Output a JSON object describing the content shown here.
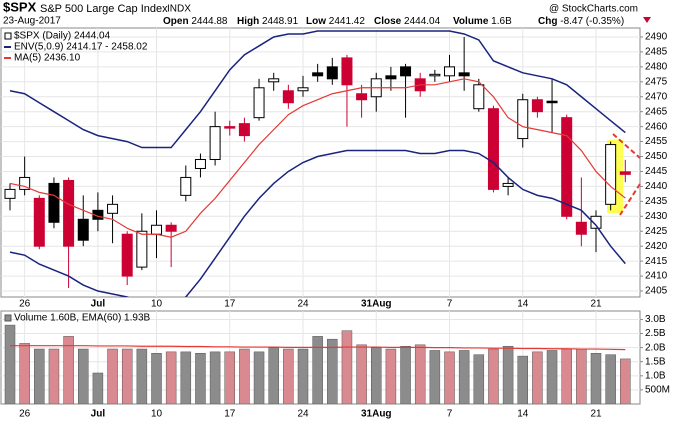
{
  "header": {
    "symbol": "$SPX",
    "name": "S&P 500 Large Cap Index",
    "exchange": "INDX",
    "date": "23-Aug-2017",
    "source": "@ StockCharts.com",
    "quote": [
      {
        "label": "Open",
        "value": 2444.88
      },
      {
        "label": "High",
        "value": 2448.91
      },
      {
        "label": "Low",
        "value": 2441.42
      },
      {
        "label": "Close",
        "value": 2444.04
      },
      {
        "label": "Volume",
        "value": "1.6B"
      },
      {
        "label": "Chg",
        "value": "-8.47 (-0.35%)"
      }
    ]
  },
  "chart_data": [
    {
      "type": "candlestick",
      "categories": [
        null,
        "26",
        null,
        null,
        null,
        null,
        "Jul",
        null,
        null,
        null,
        "10",
        null,
        null,
        null,
        null,
        "17",
        null,
        null,
        null,
        null,
        "24",
        null,
        null,
        null,
        null,
        "31Aug",
        null,
        null,
        null,
        null,
        "7",
        null,
        null,
        null,
        null,
        "14",
        null,
        null,
        null,
        null,
        "21",
        null,
        null
      ],
      "series": [
        {
          "name": "$SPX (Daily) 2444.04",
          "open": [
            2436,
            2439,
            2436,
            2441,
            2442,
            2429,
            2432,
            2431,
            2424,
            2413,
            2424,
            2427,
            2437,
            2446,
            2449,
            2460,
            2461,
            2463,
            2475,
            2472,
            2472,
            2478,
            2480,
            2483,
            2471,
            2470,
            2477,
            2480,
            2476,
            2477,
            2477,
            2478,
            2466,
            2466,
            2440,
            2456,
            2469,
            2468.5,
            2463,
            2428,
            2426,
            2434,
            2444.88
          ],
          "high": [
            2441,
            2450,
            2437,
            2443,
            2443,
            2437,
            2438,
            2437,
            2425,
            2431,
            2432,
            2428,
            2447,
            2451,
            2465,
            2462,
            2463,
            2476,
            2478,
            2474,
            2477,
            2481,
            2483,
            2484,
            2474,
            2478,
            2480,
            2481,
            2478,
            2479,
            2484,
            2490,
            2476,
            2467,
            2443,
            2471,
            2470,
            2476,
            2464,
            2443,
            2432,
            2455,
            2448.91
          ],
          "low": [
            2432,
            2437,
            2419,
            2426,
            2406,
            2420,
            2425,
            2421,
            2407,
            2412,
            2416,
            2413,
            2435,
            2443,
            2447,
            2457,
            2455,
            2462,
            2472,
            2466,
            2470,
            2475,
            2474,
            2460,
            2463,
            2465,
            2472,
            2463,
            2470,
            2475,
            2475,
            2472,
            2465,
            2438,
            2437,
            2453,
            2463,
            2458,
            2429,
            2420,
            2418,
            2432,
            2441.42
          ],
          "close": [
            2439,
            2443,
            2420,
            2428,
            2420,
            2422,
            2429,
            2434,
            2410,
            2425,
            2427,
            2425,
            2443,
            2449,
            2460,
            2459.5,
            2457,
            2473,
            2476,
            2468,
            2473,
            2477,
            2476,
            2474,
            2469,
            2476,
            2476,
            2477,
            2472,
            2477.5,
            2480,
            2477,
            2474,
            2439,
            2441,
            2469,
            2465,
            2468,
            2430,
            2424,
            2430,
            2454,
            2444.04
          ],
          "colors": [
            "#000000",
            "#000000",
            "#cc0033",
            "#000000",
            "#cc0033",
            "#000000",
            "#000000",
            "#000000",
            "#cc0033",
            "#000000",
            "#000000",
            "#cc0033",
            "#000000",
            "#000000",
            "#000000",
            "#cc0033",
            "#cc0033",
            "#000000",
            "#000000",
            "#cc0033",
            "#000000",
            "#000000",
            "#000000",
            "#cc0033",
            "#cc0033",
            "#000000",
            "#000000",
            "#000000",
            "#cc0033",
            "#000000",
            "#000000",
            "#000000",
            "#000000",
            "#cc0033",
            "#000000",
            "#000000",
            "#cc0033",
            "#000000",
            "#cc0033",
            "#cc0033",
            "#000000",
            "#000000",
            "#cc0033"
          ]
        }
      ],
      "envelope": {
        "name": "ENV(5,0.9) 2414.17 - 2458.02",
        "color": "#1a237e",
        "upper": [
          2472,
          2471,
          2468,
          2465,
          2462,
          2459,
          2457,
          2456,
          2455,
          2453,
          2453,
          2453,
          2459,
          2465,
          2472,
          2479,
          2484,
          2487,
          2490,
          2491,
          2491,
          2492,
          2492,
          2492,
          2492,
          2492,
          2492,
          2492,
          2492,
          2492,
          2492,
          2491,
          2489,
          2482,
          2480,
          2478,
          2477,
          2476,
          2474,
          2470,
          2466,
          2462,
          2458.02
        ],
        "lower": [
          2418,
          2417,
          2414,
          2412,
          2410,
          2407,
          2405,
          2404,
          2403,
          2401,
          2400,
          2399,
          2403,
          2409,
          2416,
          2423,
          2430,
          2436,
          2441,
          2445,
          2448,
          2450,
          2451,
          2452,
          2452,
          2452,
          2452,
          2452,
          2451,
          2451,
          2452,
          2452,
          2451,
          2448,
          2443,
          2439,
          2437,
          2436,
          2434,
          2432,
          2427,
          2420,
          2414.17
        ]
      },
      "ma": {
        "name": "MA(5) 2436.10",
        "color": "#e53935",
        "values": [
          2441,
          2440,
          2438,
          2437,
          2434,
          2432,
          2430,
          2429,
          2426,
          2424,
          2424,
          2423,
          2425,
          2431,
          2436,
          2442,
          2448,
          2454,
          2459,
          2464,
          2467,
          2469,
          2471,
          2472,
          2473,
          2473,
          2473,
          2473,
          2474,
          2474,
          2475,
          2476,
          2475,
          2470,
          2463,
          2460,
          2459,
          2458,
          2457,
          2452,
          2445,
          2440,
          2436.1
        ]
      },
      "ylim": [
        2403,
        2493
      ],
      "yticks": [
        2405,
        2410,
        2415,
        2420,
        2425,
        2430,
        2435,
        2440,
        2445,
        2450,
        2455,
        2460,
        2465,
        2470,
        2475,
        2480,
        2485,
        2490
      ],
      "grid": true
    },
    {
      "type": "bar",
      "categories": [
        null,
        "26",
        null,
        null,
        null,
        null,
        "Jul",
        null,
        null,
        null,
        "10",
        null,
        null,
        null,
        null,
        "17",
        null,
        null,
        null,
        null,
        "24",
        null,
        null,
        null,
        null,
        "31Aug",
        null,
        null,
        null,
        null,
        "7",
        null,
        null,
        null,
        null,
        "14",
        null,
        null,
        null,
        null,
        "21",
        null,
        null
      ],
      "series": [
        {
          "name": "Volume 1.60B, EMA(60) 1.93B",
          "values": [
            2.8,
            2.15,
            1.95,
            1.95,
            2.4,
            1.95,
            1.1,
            1.95,
            1.95,
            1.95,
            1.8,
            1.85,
            1.85,
            1.8,
            1.85,
            1.85,
            1.95,
            1.85,
            2.0,
            1.95,
            1.95,
            2.4,
            2.3,
            2.6,
            2.1,
            2.0,
            1.95,
            2.05,
            2.1,
            1.9,
            1.85,
            1.9,
            1.75,
            1.95,
            2.05,
            1.7,
            1.85,
            1.9,
            1.95,
            1.95,
            1.8,
            1.75,
            1.6
          ],
          "colors": [
            "#8c8c8c",
            "#d98a90",
            "#8c8c8c",
            "#d98a90",
            "#d98a90",
            "#8c8c8c",
            "#8c8c8c",
            "#d98a90",
            "#d98a90",
            "#8c8c8c",
            "#8c8c8c",
            "#d98a90",
            "#8c8c8c",
            "#8c8c8c",
            "#8c8c8c",
            "#d98a90",
            "#d98a90",
            "#8c8c8c",
            "#8c8c8c",
            "#d98a90",
            "#8c8c8c",
            "#8c8c8c",
            "#8c8c8c",
            "#d98a90",
            "#d98a90",
            "#8c8c8c",
            "#d98a90",
            "#8c8c8c",
            "#d98a90",
            "#8c8c8c",
            "#d98a90",
            "#8c8c8c",
            "#8c8c8c",
            "#d98a90",
            "#8c8c8c",
            "#8c8c8c",
            "#d98a90",
            "#8c8c8c",
            "#d98a90",
            "#d98a90",
            "#8c8c8c",
            "#8c8c8c",
            "#d98a90"
          ]
        }
      ],
      "ema": {
        "color": "#e53935",
        "values": [
          2.07,
          2.07,
          2.07,
          2.07,
          2.07,
          2.07,
          2.06,
          2.06,
          2.06,
          2.05,
          2.05,
          2.05,
          2.04,
          2.04,
          2.03,
          2.03,
          2.02,
          2.02,
          2.02,
          2.01,
          2.01,
          2.01,
          2.01,
          2.02,
          2.02,
          2.02,
          2.01,
          2.01,
          2.01,
          2.0,
          2.0,
          1.99,
          1.99,
          1.98,
          1.98,
          1.97,
          1.97,
          1.96,
          1.96,
          1.95,
          1.95,
          1.94,
          1.93
        ]
      },
      "ylim": [
        0,
        3.3
      ],
      "yticks": [
        {
          "value": 0.5,
          "label": "500M"
        },
        {
          "value": 1.0,
          "label": "1.0B"
        },
        {
          "value": 1.5,
          "label": "1.5B"
        },
        {
          "value": 2.0,
          "label": "2.0B"
        },
        {
          "value": 2.5,
          "label": "2.5B"
        },
        {
          "value": 3.0,
          "label": "3.0B"
        }
      ],
      "grid": true
    }
  ]
}
